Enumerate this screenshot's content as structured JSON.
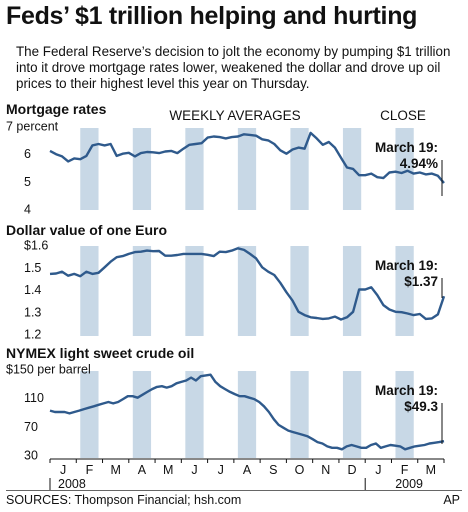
{
  "headline": "Feds’ $1 trillion helping and hurting",
  "intro": "The Federal Reserve’s decision to jolt the economy by pumping $1 trillion into it drove mortgage rates lower, weakened the dollar and drove up oil prices to their highest level this year on Thursday.",
  "source": "SOURCES: Thompson Financial; hsh.com",
  "credit": "AP",
  "colors": {
    "line": "#2f5a8c",
    "band": "#c8d8e6"
  },
  "chart_data": [
    {
      "type": "line",
      "title": "Mortgage rates",
      "overlay_labels": [
        "WEEKLY AVERAGES",
        "CLOSE"
      ],
      "yticks": [
        "7 percent",
        "6",
        "5",
        "4"
      ],
      "ytick_values": [
        7,
        6,
        5,
        4
      ],
      "ylim": [
        4,
        7
      ],
      "annotation": {
        "date": "March 19:",
        "value": "4.94%"
      },
      "series": [
        {
          "values": [
            6.1,
            5.98,
            5.9,
            5.72,
            5.83,
            5.8,
            5.92,
            6.3,
            6.35,
            6.3,
            6.35,
            5.92,
            6.0,
            6.03,
            5.9,
            6.02,
            6.06,
            6.05,
            6.02,
            6.08,
            6.1,
            6.02,
            6.18,
            6.32,
            6.35,
            6.38,
            6.58,
            6.62,
            6.6,
            6.55,
            6.6,
            6.62,
            6.7,
            6.68,
            6.65,
            6.52,
            6.48,
            6.35,
            6.12,
            6.0,
            6.15,
            6.22,
            6.18,
            6.75,
            6.55,
            6.32,
            6.42,
            6.22,
            5.85,
            5.5,
            5.45,
            5.22,
            5.22,
            5.28,
            5.15,
            5.12,
            5.32,
            5.35,
            5.3,
            5.38,
            5.28,
            5.32,
            5.25,
            5.28,
            5.2,
            4.94
          ]
        }
      ]
    },
    {
      "type": "line",
      "title": "Dollar value of one Euro",
      "yticks": [
        "$1.6",
        "1.5",
        "1.4",
        "1.3",
        "1.2"
      ],
      "ytick_values": [
        1.6,
        1.5,
        1.4,
        1.3,
        1.2
      ],
      "ylim": [
        1.2,
        1.6
      ],
      "annotation": {
        "date": "March 19:",
        "value": "$1.37"
      },
      "series": [
        {
          "values": [
            1.47,
            1.472,
            1.48,
            1.462,
            1.47,
            1.46,
            1.48,
            1.47,
            1.475,
            1.5,
            1.525,
            1.545,
            1.55,
            1.56,
            1.568,
            1.57,
            1.575,
            1.572,
            1.573,
            1.552,
            1.552,
            1.555,
            1.56,
            1.56,
            1.56,
            1.56,
            1.556,
            1.55,
            1.57,
            1.568,
            1.575,
            1.585,
            1.578,
            1.56,
            1.54,
            1.5,
            1.48,
            1.465,
            1.43,
            1.388,
            1.35,
            1.3,
            1.285,
            1.275,
            1.272,
            1.268,
            1.27,
            1.278,
            1.265,
            1.275,
            1.3,
            1.4,
            1.4,
            1.41,
            1.375,
            1.33,
            1.31,
            1.3,
            1.298,
            1.292,
            1.285,
            1.29,
            1.268,
            1.27,
            1.288,
            1.37
          ]
        }
      ]
    },
    {
      "type": "line",
      "title": "NYMEX light sweet crude oil",
      "yticks": [
        "$150 per barrel",
        "110",
        "70",
        "30"
      ],
      "ytick_values": [
        150,
        110,
        70,
        30
      ],
      "ylim": [
        30,
        150
      ],
      "annotation": {
        "date": "March 19:",
        "value": "$49.3"
      },
      "series": [
        {
          "values": [
            92,
            90,
            90,
            90,
            88,
            90,
            92,
            94,
            96,
            98,
            100,
            102,
            104,
            102,
            104,
            108,
            112,
            112,
            110,
            114,
            118,
            122,
            125,
            126,
            124,
            126,
            130,
            132,
            134,
            138,
            134,
            140,
            141,
            142,
            132,
            126,
            122,
            118,
            115,
            112,
            112,
            110,
            108,
            104,
            98,
            90,
            80,
            72,
            68,
            64,
            62,
            60,
            58,
            56,
            52,
            48,
            46,
            42,
            40,
            40,
            38,
            42,
            44,
            42,
            40,
            40,
            44,
            46,
            40,
            42,
            44,
            43,
            42,
            38,
            40,
            42,
            43,
            44,
            46,
            47,
            48,
            49.3
          ]
        }
      ]
    }
  ],
  "x_axis": {
    "months": [
      "J",
      "F",
      "M",
      "A",
      "M",
      "J",
      "J",
      "A",
      "S",
      "O",
      "N",
      "D",
      "J",
      "F",
      "M"
    ],
    "years": [
      "2008",
      "2009"
    ]
  }
}
